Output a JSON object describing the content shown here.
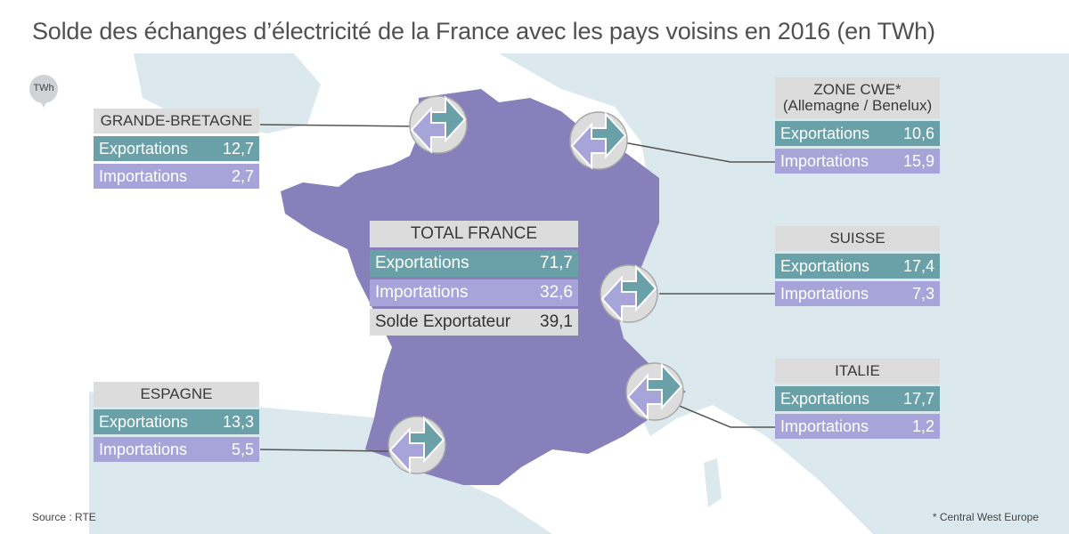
{
  "title": "Solde des échanges d’électricité de la France avec les pays voisins en 2016 (en TWh)",
  "unit_badge": "TWh",
  "colors": {
    "sea": "#ffffff",
    "land": "#dbe9ee",
    "france": "#8880bb",
    "export": "#6aa0a8",
    "import": "#a7a4d9",
    "header": "#dcdcdc"
  },
  "total": {
    "header": "TOTAL FRANCE",
    "export_label": "Exportations",
    "export_value": "71,7",
    "import_label": "Importations",
    "import_value": "32,6",
    "balance_label": "Solde Exportateur",
    "balance_value": "39,1"
  },
  "countries": {
    "gb": {
      "header": "GRANDE-BRETAGNE",
      "export_label": "Exportations",
      "export_value": "12,7",
      "import_label": "Importations",
      "import_value": "2,7"
    },
    "es": {
      "header": "ESPAGNE",
      "export_label": "Exportations",
      "export_value": "13,3",
      "import_label": "Importations",
      "import_value": "5,5"
    },
    "cwe": {
      "header_line1": "ZONE CWE*",
      "header_line2": "(Allemagne / Benelux)",
      "export_label": "Exportations",
      "export_value": "10,6",
      "import_label": "Importations",
      "import_value": "15,9"
    },
    "ch": {
      "header": "SUISSE",
      "export_label": "Exportations",
      "export_value": "17,4",
      "import_label": "Importations",
      "import_value": "7,3"
    },
    "it": {
      "header": "ITALIE",
      "export_label": "Exportations",
      "export_value": "17,7",
      "import_label": "Importations",
      "import_value": "1,2"
    }
  },
  "source": "Source : RTE",
  "footnote": "* Central West Europe"
}
